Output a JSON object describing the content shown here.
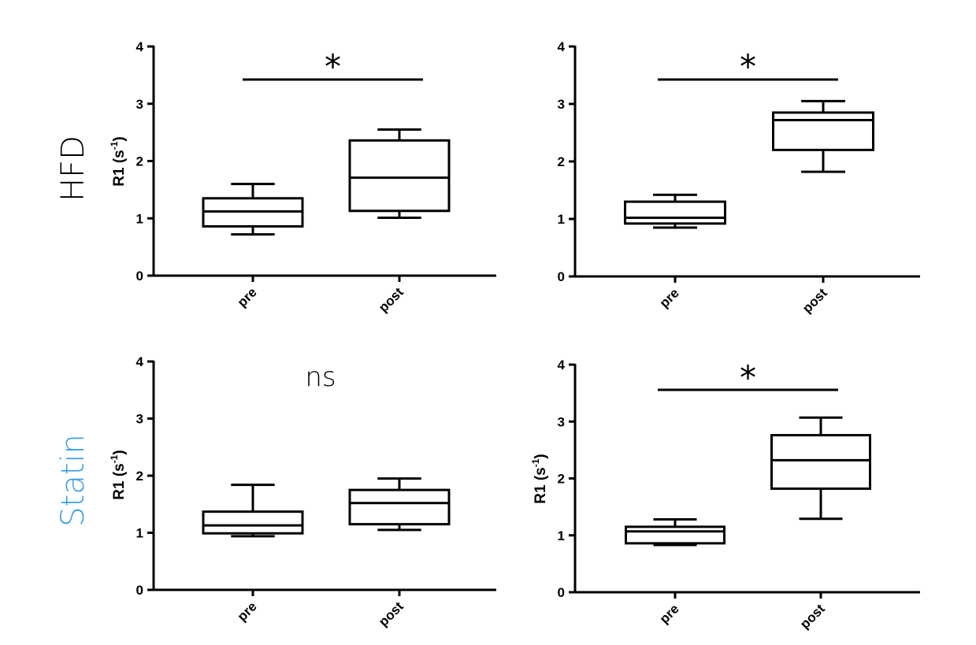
{
  "row_labels": [
    {
      "text": "HFD",
      "color": "#000000"
    },
    {
      "text": "Statin",
      "color": "#3a9fe6"
    }
  ],
  "chart_data": [
    {
      "type": "boxplot",
      "row": "HFD",
      "ylabel": "R1 (s",
      "ylabel_sup": "-1",
      "ylabel_close": ")",
      "ylim": [
        0,
        4
      ],
      "yticks": [
        "0",
        "1",
        "2",
        "3",
        "4"
      ],
      "categories": [
        "pre",
        "post"
      ],
      "boxes": [
        {
          "min": 0.72,
          "q1": 0.86,
          "median": 1.12,
          "q3": 1.35,
          "max": 1.6
        },
        {
          "min": 1.01,
          "q1": 1.13,
          "median": 1.71,
          "q3": 2.36,
          "max": 2.55
        }
      ],
      "significance": {
        "text": "*",
        "bracket": true
      }
    },
    {
      "type": "boxplot",
      "row": "HFD",
      "ylabel": "",
      "ylabel_sup": "",
      "ylabel_close": "",
      "ylim": [
        0,
        4
      ],
      "yticks": [
        "0",
        "1",
        "2",
        "3",
        "4"
      ],
      "categories": [
        "pre",
        "post"
      ],
      "boxes": [
        {
          "min": 0.85,
          "q1": 0.92,
          "median": 1.02,
          "q3": 1.3,
          "max": 1.42
        },
        {
          "min": 1.82,
          "q1": 2.2,
          "median": 2.72,
          "q3": 2.85,
          "max": 3.05
        }
      ],
      "significance": {
        "text": "*",
        "bracket": true
      }
    },
    {
      "type": "boxplot",
      "row": "Statin",
      "ylabel": "R1 (s",
      "ylabel_sup": "-1",
      "ylabel_close": ")",
      "ylim": [
        0,
        4
      ],
      "yticks": [
        "0",
        "1",
        "2",
        "3",
        "4"
      ],
      "categories": [
        "pre",
        "post"
      ],
      "boxes": [
        {
          "min": 0.94,
          "q1": 0.99,
          "median": 1.13,
          "q3": 1.37,
          "max": 1.84
        },
        {
          "min": 1.05,
          "q1": 1.15,
          "median": 1.52,
          "q3": 1.75,
          "max": 1.95
        }
      ],
      "significance": {
        "text": "ns",
        "bracket": false
      }
    },
    {
      "type": "boxplot",
      "row": "Statin",
      "ylabel": "R1 (s",
      "ylabel_sup": "-1",
      "ylabel_close": ")",
      "ylim": [
        0,
        4
      ],
      "yticks": [
        "0",
        "1",
        "2",
        "3",
        "4"
      ],
      "categories": [
        "pre",
        "post"
      ],
      "boxes": [
        {
          "min": 0.83,
          "q1": 0.86,
          "median": 1.07,
          "q3": 1.15,
          "max": 1.28
        },
        {
          "min": 1.29,
          "q1": 1.82,
          "median": 2.32,
          "q3": 2.76,
          "max": 3.07
        }
      ],
      "significance": {
        "text": "*",
        "bracket": true
      }
    }
  ]
}
